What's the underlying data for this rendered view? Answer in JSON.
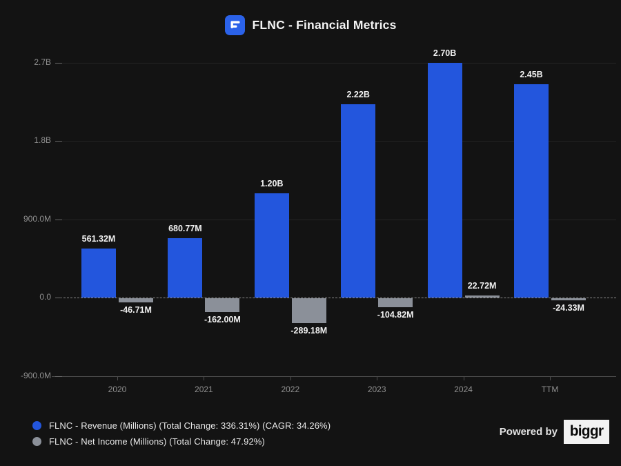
{
  "title": {
    "text": "FLNC - Financial Metrics"
  },
  "chart_data": {
    "type": "bar",
    "title": "FLNC - Financial Metrics",
    "categories": [
      "2020",
      "2021",
      "2022",
      "2023",
      "2024",
      "TTM"
    ],
    "series": [
      {
        "name": "FLNC - Revenue (Millions) (Total Change: 336.31%) (CAGR: 34.26%)",
        "color": "#2356dd",
        "values_millions": [
          561.32,
          680.77,
          1200,
          2220,
          2700,
          2450
        ],
        "labels": [
          "561.32M",
          "680.77M",
          "1.20B",
          "2.22B",
          "2.70B",
          "2.45B"
        ]
      },
      {
        "name": "FLNC - Net Income (Millions) (Total Change: 47.92%)",
        "color": "#8b9099",
        "values_millions": [
          -46.71,
          -162.0,
          -289.18,
          -104.82,
          22.72,
          -24.33
        ],
        "labels": [
          "-46.71M",
          "-162.00M",
          "-289.18M",
          "-104.82M",
          "22.72M",
          "-24.33M"
        ]
      }
    ],
    "y_ticks": [
      {
        "label": "2.7B",
        "value_millions": 2700
      },
      {
        "label": "1.8B",
        "value_millions": 1800
      },
      {
        "label": "900.0M",
        "value_millions": 900
      },
      {
        "label": "0.0",
        "value_millions": 0
      },
      {
        "label": "-900.0M",
        "value_millions": -900
      }
    ],
    "ylim_millions": [
      -900,
      2700
    ],
    "grid": true,
    "zero_line": "dashed",
    "legend_position": "bottom-left"
  },
  "footer": {
    "powered_by": "Powered by",
    "brand": "biggr"
  },
  "colors": {
    "background": "#131313",
    "revenue_bar": "#2356dd",
    "net_income_bar": "#8b9099",
    "icon_blue": "#2b62e9",
    "axis_text": "#8f8f8f",
    "value_text": "#f1f1f1"
  }
}
